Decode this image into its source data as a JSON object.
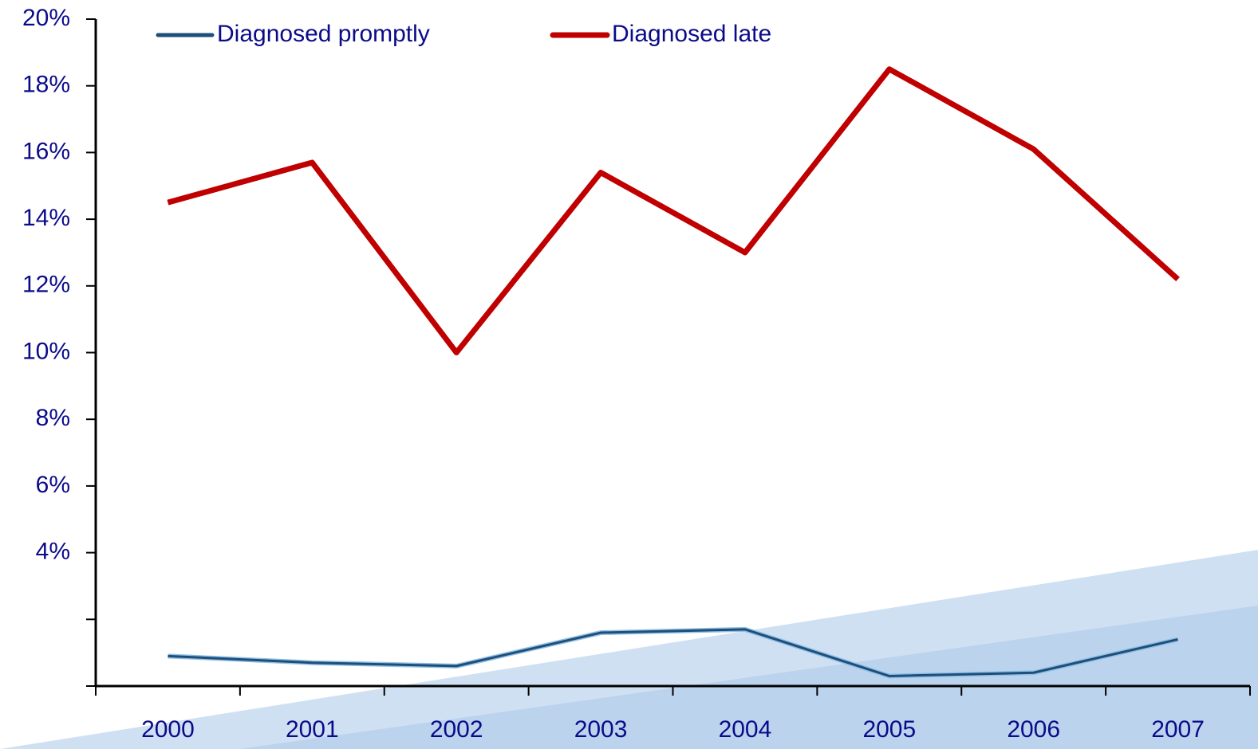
{
  "chart_data": {
    "type": "line",
    "categories": [
      "2000",
      "2001",
      "2002",
      "2003",
      "2004",
      "2005",
      "2006",
      "2007"
    ],
    "series": [
      {
        "name": "Diagnosed promptly",
        "color": "#1f4e79",
        "values": [
          0.9,
          0.7,
          0.6,
          1.6,
          1.7,
          0.3,
          0.4,
          1.4
        ]
      },
      {
        "name": "Diagnosed late",
        "color": "#c00000",
        "values": [
          14.5,
          15.7,
          10.0,
          15.4,
          13.0,
          18.5,
          16.1,
          12.2
        ]
      }
    ],
    "ylim": [
      0,
      20
    ],
    "yticks": [
      {
        "value": 0,
        "label": null
      },
      {
        "value": 2,
        "label": null
      },
      {
        "value": 4,
        "label": "4%"
      },
      {
        "value": 6,
        "label": "6%"
      },
      {
        "value": 8,
        "label": "8%"
      },
      {
        "value": 10,
        "label": "10%"
      },
      {
        "value": 12,
        "label": "12%"
      },
      {
        "value": 14,
        "label": "14%"
      },
      {
        "value": 16,
        "label": "16%"
      },
      {
        "value": 18,
        "label": "18%"
      },
      {
        "value": 20,
        "label": "20%"
      }
    ],
    "legend": "top"
  }
}
